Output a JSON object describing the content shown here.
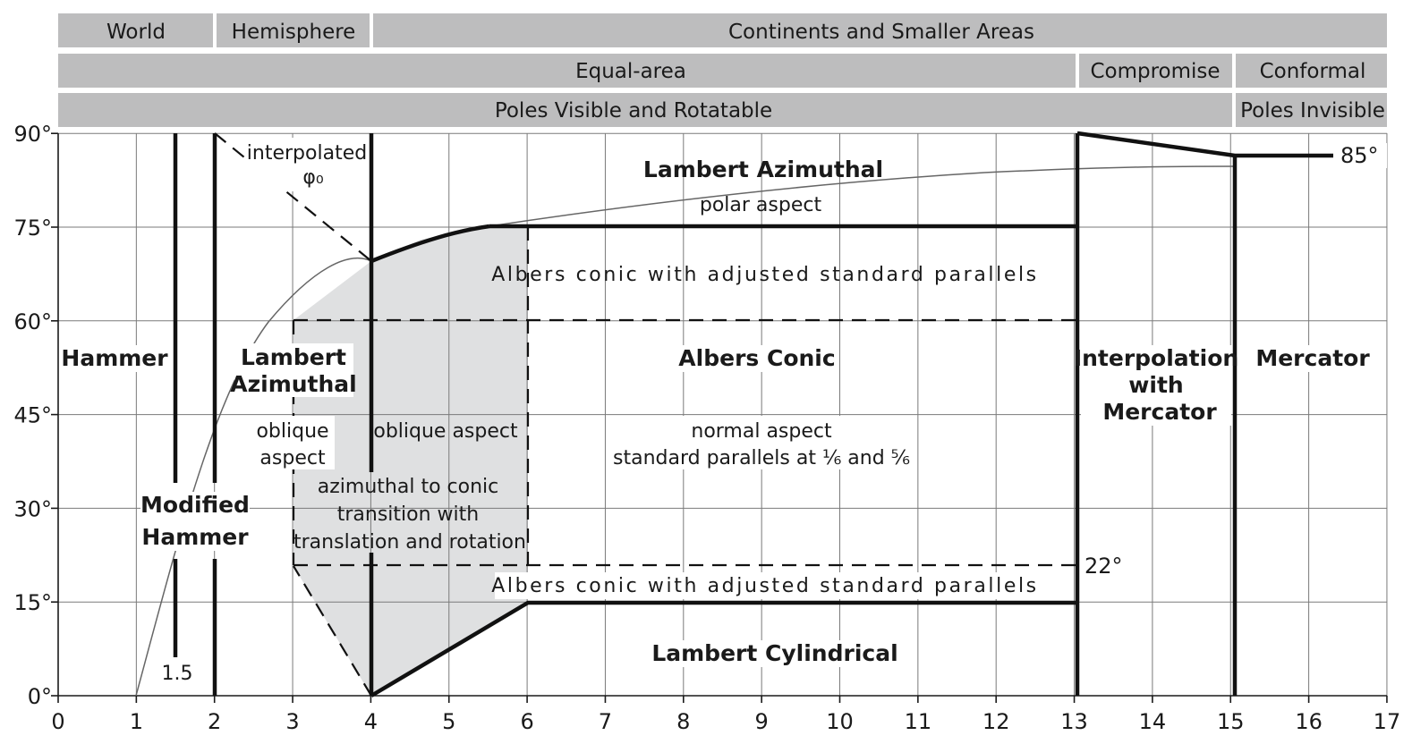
{
  "bands": {
    "scale_row": {
      "world": "World",
      "hemisphere": "Hemisphere",
      "continents": "Continents and Smaller Areas"
    },
    "property_row": {
      "equal_area": "Equal-area",
      "compromise": "Compromise",
      "conformal": "Conformal"
    },
    "poles_row": {
      "visible": "Poles Visible and Rotatable",
      "invisible": "Poles Invisible"
    }
  },
  "axes": {
    "x_ticks": [
      "0",
      "1",
      "2",
      "3",
      "4",
      "5",
      "6",
      "7",
      "8",
      "9",
      "10",
      "11",
      "12",
      "13",
      "14",
      "15",
      "16",
      "17"
    ],
    "y_ticks": [
      "0°",
      "15°",
      "30°",
      "45°",
      "60°",
      "75°",
      "90°"
    ]
  },
  "regions": {
    "hammer": "Hammer",
    "modified_hammer_line1": "Modified",
    "modified_hammer_line2": "Hammer",
    "ratio_label": "1.5",
    "lambert_az_oblique_line1": "Lambert",
    "lambert_az_oblique_line2": "Azimuthal",
    "oblique_aspect_line1": "oblique",
    "oblique_aspect_line2": "aspect",
    "oblique_aspect_right": "oblique aspect",
    "transition_line1": "azimuthal to conic",
    "transition_line2": "transition with",
    "transition_line3": "translation and rotation",
    "interpolated_line1": "interpolated",
    "interpolated_line2": "φ₀",
    "lambert_az_polar_title": "Lambert Azimuthal",
    "lambert_az_polar_sub": "polar aspect",
    "albers_adjusted_top": "Albers conic with adjusted standard parallels",
    "albers_conic_title": "Albers Conic",
    "albers_normal_line1": "normal aspect",
    "albers_normal_line2": "standard parallels at ⅙ and ⅚",
    "albers_adjusted_bottom": "Albers conic with adjusted standard parallels",
    "lambert_cylindrical": "Lambert Cylindrical",
    "interp_mercator_line1": "Interpolation",
    "interp_mercator_line2": "with",
    "interp_mercator_line3": "Mercator",
    "mercator": "Mercator",
    "label_85": "85°",
    "label_22": "22°"
  },
  "colors": {
    "band_fill": "#bdbdbe",
    "shaded_region": "#dfe0e1",
    "line": "#111111",
    "grid": "#7a7a7a"
  }
}
